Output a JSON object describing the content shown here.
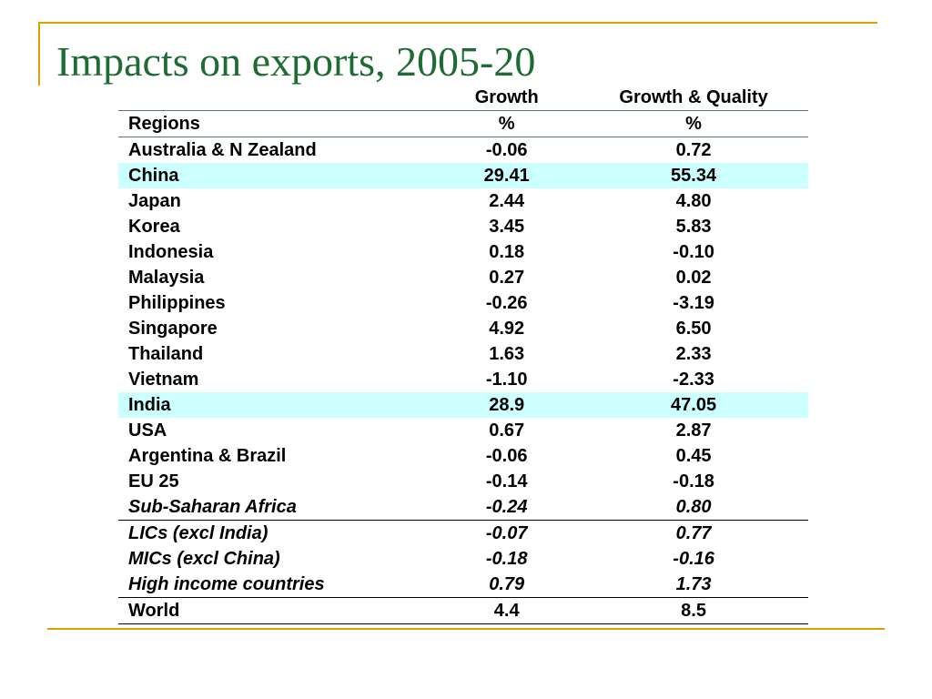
{
  "slide": {
    "title": "Impacts on exports, 2005-20"
  },
  "table": {
    "headers": {
      "row1": [
        "",
        "Growth",
        "Growth & Quality"
      ],
      "row2": [
        "Regions",
        "%",
        "%"
      ]
    },
    "rows": [
      {
        "region": "Australia & N Zealand",
        "growth": "-0.06",
        "growth_quality": "0.72"
      },
      {
        "region": "China",
        "growth": "29.41",
        "growth_quality": "55.34"
      },
      {
        "region": "Japan",
        "growth": "2.44",
        "growth_quality": "4.80"
      },
      {
        "region": "Korea",
        "growth": "3.45",
        "growth_quality": "5.83"
      },
      {
        "region": "Indonesia",
        "growth": "0.18",
        "growth_quality": "-0.10"
      },
      {
        "region": "Malaysia",
        "growth": "0.27",
        "growth_quality": "0.02"
      },
      {
        "region": "Philippines",
        "growth": "-0.26",
        "growth_quality": "-3.19"
      },
      {
        "region": "Singapore",
        "growth": "4.92",
        "growth_quality": "6.50"
      },
      {
        "region": "Thailand",
        "growth": "1.63",
        "growth_quality": "2.33"
      },
      {
        "region": "Vietnam",
        "growth": "-1.10",
        "growth_quality": "-2.33"
      },
      {
        "region": "India",
        "growth": "28.9",
        "growth_quality": "47.05"
      },
      {
        "region": "USA",
        "growth": "0.67",
        "growth_quality": "2.87"
      },
      {
        "region": "Argentina & Brazil",
        "growth": "-0.06",
        "growth_quality": "0.45"
      },
      {
        "region": "EU 25",
        "growth": "-0.14",
        "growth_quality": "-0.18"
      },
      {
        "region": "Sub-Saharan Africa",
        "growth": "-0.24",
        "growth_quality": "0.80"
      },
      {
        "region": "LICs (excl India)",
        "growth": "-0.07",
        "growth_quality": "0.77"
      },
      {
        "region": "MICs (excl China)",
        "growth": "-0.18",
        "growth_quality": "-0.16"
      },
      {
        "region": "High income countries",
        "growth": "0.79",
        "growth_quality": "1.73"
      },
      {
        "region": "World",
        "growth": "4.4",
        "growth_quality": "8.5"
      }
    ]
  },
  "colors": {
    "accent_frame": "#d9a300",
    "title_text": "#1e6b33",
    "highlight_row": "#ccffff"
  }
}
